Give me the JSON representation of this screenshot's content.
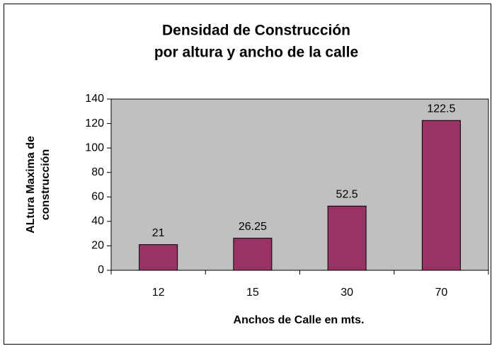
{
  "chart_data": {
    "type": "bar",
    "title": [
      "Densidad de Construcción",
      "por altura y ancho de la calle"
    ],
    "y_label": [
      "ALtura Maxima de",
      "construcción"
    ],
    "x_label": "Anchos de Calle en mts.",
    "categories": [
      "12",
      "15",
      "30",
      "70"
    ],
    "values": [
      21,
      26.25,
      52.5,
      122.5
    ],
    "color": "#993366",
    "plot_background": "#c0c0c0",
    "ylim": [
      0,
      140
    ],
    "yticks": [
      0,
      20,
      40,
      60,
      80,
      100,
      120,
      140
    ],
    "grid": false
  }
}
